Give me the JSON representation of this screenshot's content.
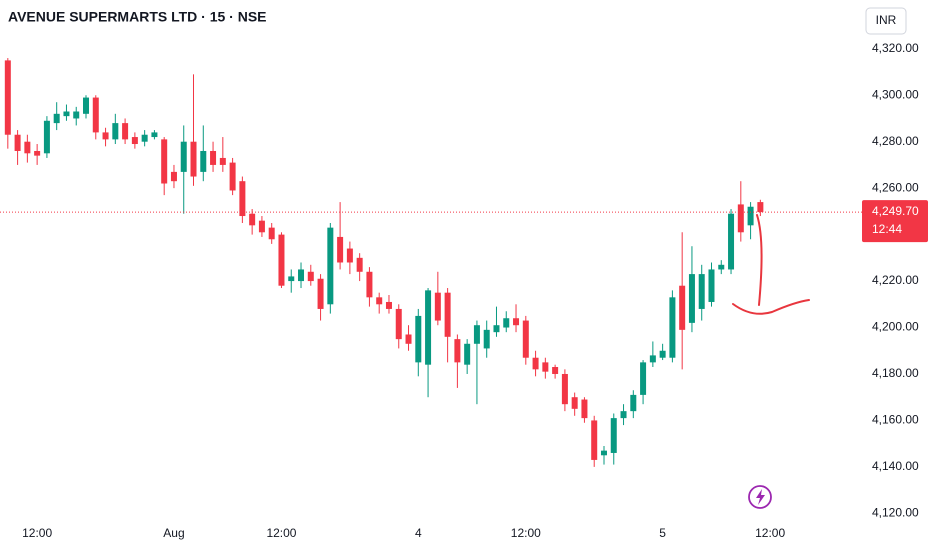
{
  "chart_data": {
    "type": "candlestick",
    "title": "AVENUE SUPERMARTS LTD · 15 · NSE",
    "currency": "INR",
    "up_color": "#089981",
    "down_color": "#f23645",
    "open": [
      4315,
      4283,
      4280,
      4276,
      4275,
      4288,
      4291,
      4290,
      4292,
      4299,
      4284,
      4281,
      4288,
      4282,
      4280,
      4282,
      4281,
      4267,
      4267,
      4280,
      4267,
      4276,
      4273,
      4271,
      4263,
      4249,
      4246,
      4243,
      4240,
      4220,
      4220,
      4224,
      4221,
      4210,
      4239,
      4234,
      4230,
      4224,
      4213,
      4211,
      4208,
      4197,
      4185,
      4184,
      4215,
      4215,
      4195,
      4184,
      4193,
      4191,
      4198,
      4200,
      4204,
      4203,
      4187,
      4185,
      4183,
      4180,
      4170,
      4169,
      4160,
      4145,
      4146,
      4161,
      4164,
      4171,
      4185,
      4187,
      4187,
      4218,
      4202,
      4208,
      4211,
      4225,
      4225,
      4253,
      4244,
      4254
    ],
    "high": [
      4316,
      4285,
      4283,
      4279,
      4291,
      4297,
      4296,
      4295,
      4300,
      4300,
      4286,
      4292,
      4290,
      4284,
      4285,
      4285,
      4282,
      4270,
      4287,
      4309,
      4287,
      4280,
      4282,
      4273,
      4265,
      4251,
      4248,
      4245,
      4241,
      4225,
      4228,
      4227,
      4223,
      4245,
      4254,
      4237,
      4232,
      4226,
      4215,
      4214,
      4210,
      4201,
      4208,
      4217,
      4224,
      4217,
      4197,
      4195,
      4203,
      4203,
      4209,
      4207,
      4210,
      4205,
      4190,
      4187,
      4184,
      4182,
      4172,
      4170,
      4162,
      4149,
      4163,
      4167,
      4173,
      4186,
      4194,
      4193,
      4216,
      4241,
      4235,
      4227,
      4228,
      4229,
      4251,
      4263,
      4254,
      4255
    ],
    "low": [
      4277,
      4270,
      4271,
      4270,
      4273,
      4285,
      4289,
      4287,
      4290,
      4281,
      4278,
      4279,
      4279,
      4277,
      4278,
      4281,
      4257,
      4260,
      4249,
      4261,
      4263,
      4267,
      4267,
      4257,
      4245,
      4240,
      4239,
      4236,
      4217,
      4215,
      4217,
      4218,
      4203,
      4206,
      4225,
      4223,
      4220,
      4209,
      4206,
      4206,
      4191,
      4190,
      4179,
      4170,
      4201,
      4185,
      4174,
      4180,
      4167,
      4187,
      4196,
      4198,
      4198,
      4184,
      4179,
      4178,
      4178,
      4164,
      4162,
      4159,
      4140,
      4141,
      4141,
      4158,
      4161,
      4167,
      4183,
      4186,
      4185,
      4182,
      4198,
      4203,
      4209,
      4223,
      4223,
      4237,
      4238,
      4248
    ],
    "close": [
      4283,
      4276,
      4275,
      4274,
      4289,
      4292,
      4293,
      4293,
      4299,
      4284,
      4281,
      4288,
      4281,
      4279,
      4283,
      4284,
      4262,
      4263,
      4280,
      4265,
      4276,
      4270,
      4270,
      4259,
      4248,
      4244,
      4241,
      4238,
      4218,
      4222,
      4225,
      4220,
      4208,
      4243,
      4228,
      4228,
      4224,
      4213,
      4210,
      4208,
      4195,
      4193,
      4205,
      4216,
      4203,
      4196,
      4185,
      4193,
      4201,
      4199,
      4201,
      4204,
      4201,
      4187,
      4182,
      4181,
      4180,
      4167,
      4165,
      4161,
      4143,
      4147,
      4161,
      4164,
      4171,
      4185,
      4188,
      4190,
      4213,
      4199,
      4223,
      4223,
      4225,
      4227,
      4249,
      4241,
      4252,
      4249.7
    ],
    "last_price": {
      "value": 4249.7,
      "label": "4,249.70"
    },
    "countdown": "12:44",
    "xlim": [
      -0.8,
      87.4
    ],
    "xticks": [
      {
        "value": 3,
        "label": "12:00"
      },
      {
        "value": 17,
        "label": "Aug"
      },
      {
        "value": 28,
        "label": "12:00"
      },
      {
        "value": 42,
        "label": "4"
      },
      {
        "value": 53,
        "label": "12:00"
      },
      {
        "value": 67,
        "label": "5"
      },
      {
        "value": 78,
        "label": "12:00"
      }
    ],
    "ylim": [
      4118,
      4341
    ],
    "yticks": [
      {
        "value": 4120,
        "label": "4,120.00"
      },
      {
        "value": 4140,
        "label": "4,140.00"
      },
      {
        "value": 4160,
        "label": "4,160.00"
      },
      {
        "value": 4180,
        "label": "4,180.00"
      },
      {
        "value": 4200,
        "label": "4,200.00"
      },
      {
        "value": 4220,
        "label": "4,220.00"
      },
      {
        "value": 4260,
        "label": "4,260.00"
      },
      {
        "value": 4280,
        "label": "4,280.00"
      },
      {
        "value": 4300,
        "label": "4,300.00"
      },
      {
        "value": 4320,
        "label": "4,320.00"
      }
    ]
  }
}
